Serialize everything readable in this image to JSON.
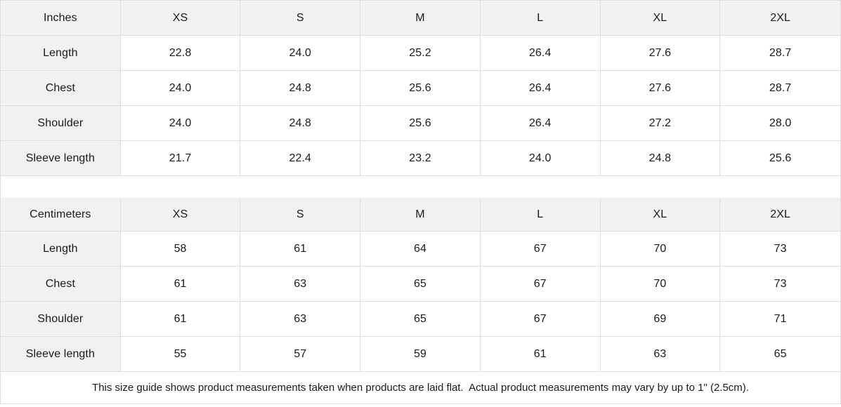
{
  "sizes": [
    "XS",
    "S",
    "M",
    "L",
    "XL",
    "2XL"
  ],
  "tables": {
    "inches": {
      "unit_label": "Inches",
      "rows": [
        {
          "label": "Length",
          "values": [
            "22.8",
            "24.0",
            "25.2",
            "26.4",
            "27.6",
            "28.7"
          ]
        },
        {
          "label": "Chest",
          "values": [
            "24.0",
            "24.8",
            "25.6",
            "26.4",
            "27.6",
            "28.7"
          ]
        },
        {
          "label": "Shoulder",
          "values": [
            "24.0",
            "24.8",
            "25.6",
            "26.4",
            "27.2",
            "28.0"
          ]
        },
        {
          "label": "Sleeve length",
          "values": [
            "21.7",
            "22.4",
            "23.2",
            "24.0",
            "24.8",
            "25.6"
          ]
        }
      ]
    },
    "centimeters": {
      "unit_label": "Centimeters",
      "rows": [
        {
          "label": "Length",
          "values": [
            "58",
            "61",
            "64",
            "67",
            "70",
            "73"
          ]
        },
        {
          "label": "Chest",
          "values": [
            "61",
            "63",
            "65",
            "67",
            "70",
            "73"
          ]
        },
        {
          "label": "Shoulder",
          "values": [
            "61",
            "63",
            "65",
            "67",
            "69",
            "71"
          ]
        },
        {
          "label": "Sleeve length",
          "values": [
            "55",
            "57",
            "59",
            "61",
            "63",
            "65"
          ]
        }
      ]
    }
  },
  "footer": {
    "note": "This size guide shows product measurements taken when products are laid flat.  Actual product measurements may vary by up to 1\" (2.5cm)."
  },
  "colors": {
    "header_background": "#f1f1f1",
    "border": "#dedede",
    "text": "#1a1a1a"
  }
}
